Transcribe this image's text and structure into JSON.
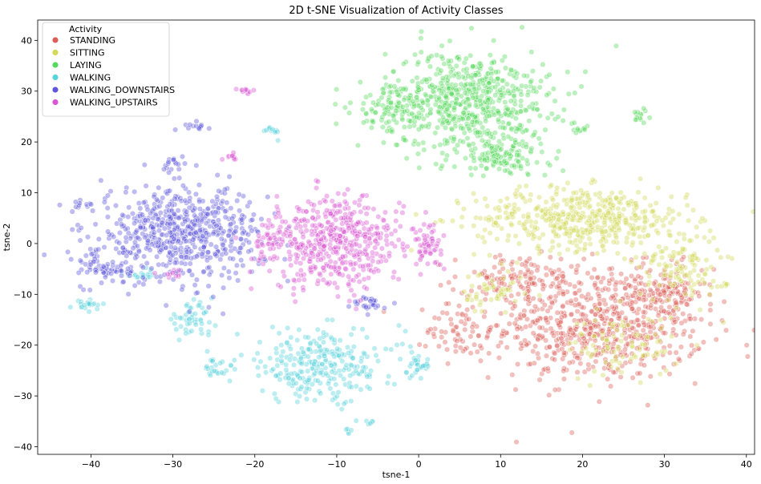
{
  "chart_data": {
    "type": "scatter",
    "title": "2D t-SNE Visualization of Activity Classes",
    "xlabel": "tsne-1",
    "ylabel": "tsne-2",
    "xlim": [
      -46.5,
      41
    ],
    "ylim": [
      -41.5,
      44
    ],
    "xticks": [
      -40,
      -30,
      -20,
      -10,
      0,
      10,
      20,
      30,
      40
    ],
    "yticks": [
      -40,
      -30,
      -20,
      -10,
      0,
      10,
      20,
      30,
      40
    ],
    "legend": {
      "title": "Activity",
      "placement": "top-left"
    },
    "series": [
      {
        "name": "STANDING",
        "color": "#db5f57",
        "clusters": [
          {
            "cx": 22,
            "cy": -16,
            "rx": 13,
            "ry": 11,
            "n": 650
          },
          {
            "cx": 12,
            "cy": -7,
            "rx": 8,
            "ry": 5,
            "n": 120
          },
          {
            "cx": 30,
            "cy": -10,
            "rx": 5,
            "ry": 6,
            "n": 100
          },
          {
            "cx": 5,
            "cy": -17,
            "rx": 4,
            "ry": 6,
            "n": 60
          }
        ]
      },
      {
        "name": "SITTING",
        "color": "#d3d957",
        "clusters": [
          {
            "cx": 20,
            "cy": 5,
            "rx": 13,
            "ry": 6,
            "n": 480
          },
          {
            "cx": 32,
            "cy": -4,
            "rx": 5,
            "ry": 8,
            "n": 120
          },
          {
            "cx": 9,
            "cy": -10,
            "rx": 4,
            "ry": 5,
            "n": 50
          },
          {
            "cx": 25,
            "cy": -20,
            "rx": 7,
            "ry": 6,
            "n": 90
          },
          {
            "cx": 37.3,
            "cy": -8,
            "rx": 0.6,
            "ry": 0.6,
            "n": 5
          }
        ]
      },
      {
        "name": "LAYING",
        "color": "#57d95d",
        "clusters": [
          {
            "cx": 6,
            "cy": 28,
            "rx": 10,
            "ry": 10,
            "n": 650
          },
          {
            "cx": 10,
            "cy": 17,
            "rx": 6,
            "ry": 4,
            "n": 120
          },
          {
            "cx": -4,
            "cy": 27,
            "rx": 4,
            "ry": 4,
            "n": 70
          },
          {
            "cx": 27,
            "cy": 25,
            "rx": 1.5,
            "ry": 1.5,
            "n": 14
          },
          {
            "cx": 20,
            "cy": 22.5,
            "rx": 1.5,
            "ry": 0.8,
            "n": 10
          }
        ]
      },
      {
        "name": "WALKING",
        "color": "#57d3db",
        "clusters": [
          {
            "cx": -12,
            "cy": -24,
            "rx": 10,
            "ry": 7,
            "n": 280
          },
          {
            "cx": -28,
            "cy": -15,
            "rx": 3,
            "ry": 3,
            "n": 50
          },
          {
            "cx": -40,
            "cy": -12,
            "rx": 2,
            "ry": 1,
            "n": 22
          },
          {
            "cx": -18,
            "cy": 22,
            "rx": 1,
            "ry": 1,
            "n": 12
          },
          {
            "cx": 0,
            "cy": -24,
            "rx": 1.5,
            "ry": 1.5,
            "n": 25
          },
          {
            "cx": -34,
            "cy": -6,
            "rx": 2,
            "ry": 1,
            "n": 18
          },
          {
            "cx": -25,
            "cy": -25,
            "rx": 2,
            "ry": 2,
            "n": 20
          },
          {
            "cx": -8.5,
            "cy": -37,
            "rx": 0.5,
            "ry": 0.5,
            "n": 5
          },
          {
            "cx": -6,
            "cy": -35,
            "rx": 0.6,
            "ry": 0.6,
            "n": 5
          }
        ]
      },
      {
        "name": "WALKING_DOWNSTAIRS",
        "color": "#5f57db",
        "clusters": [
          {
            "cx": -29,
            "cy": 2,
            "rx": 10,
            "ry": 9,
            "n": 620
          },
          {
            "cx": -38,
            "cy": -5,
            "rx": 3,
            "ry": 3,
            "n": 60
          },
          {
            "cx": -27,
            "cy": 23,
            "rx": 1.5,
            "ry": 0.8,
            "n": 14
          },
          {
            "cx": -30,
            "cy": 16,
            "rx": 1.5,
            "ry": 1.5,
            "n": 15
          },
          {
            "cx": -6,
            "cy": -12,
            "rx": 2,
            "ry": 1.5,
            "n": 30
          },
          {
            "cx": -41,
            "cy": 8,
            "rx": 1,
            "ry": 1,
            "n": 8
          }
        ]
      },
      {
        "name": "WALKING_UPSTAIRS",
        "color": "#d957d3",
        "clusters": [
          {
            "cx": -10,
            "cy": 0,
            "rx": 8,
            "ry": 9,
            "n": 480
          },
          {
            "cx": 1,
            "cy": 0,
            "rx": 1.8,
            "ry": 4,
            "n": 60
          },
          {
            "cx": -21,
            "cy": 30,
            "rx": 1,
            "ry": 0.5,
            "n": 12
          },
          {
            "cx": -23,
            "cy": 17,
            "rx": 1,
            "ry": 0.7,
            "n": 12
          },
          {
            "cx": -18,
            "cy": 1,
            "rx": 2,
            "ry": 5,
            "n": 50
          },
          {
            "cx": -30,
            "cy": -6,
            "rx": 1.5,
            "ry": 1,
            "n": 10
          }
        ]
      }
    ]
  }
}
